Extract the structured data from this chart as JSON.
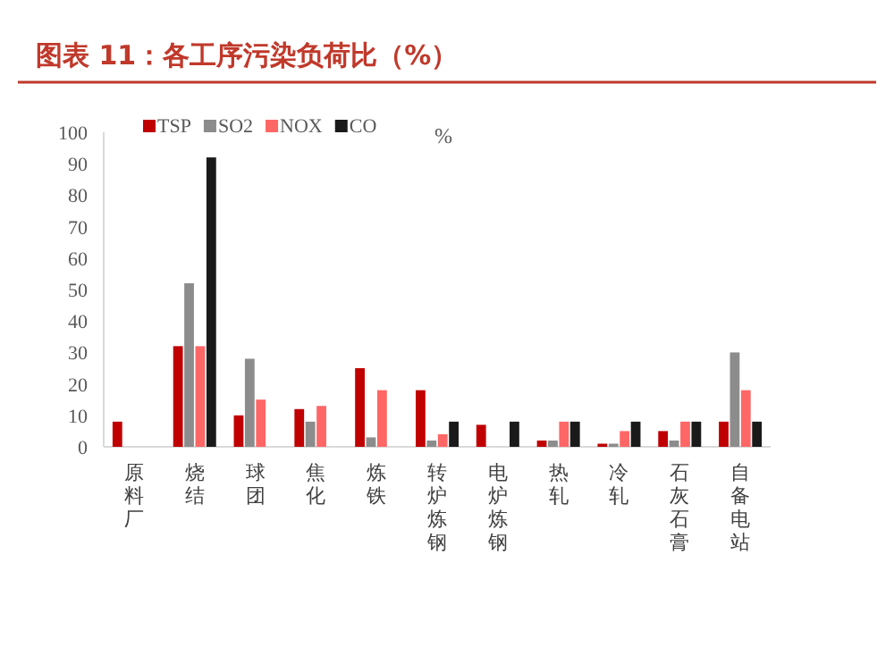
{
  "chart_data": {
    "type": "bar",
    "title": "图表 11：各工序污染负荷比（%）",
    "ylabel": "%",
    "categories": [
      "原料厂",
      "烧结",
      "球团",
      "焦化",
      "炼铁",
      "转炉炼钢",
      "电炉炼钢",
      "热轧",
      "冷轧",
      "石灰石膏",
      "自备电站"
    ],
    "series": [
      {
        "name": "TSP",
        "color": "#c00000",
        "values": [
          8,
          32,
          10,
          12,
          25,
          18,
          7,
          2,
          1,
          5,
          8
        ]
      },
      {
        "name": "SO2",
        "color": "#8c8c8c",
        "values": [
          0,
          52,
          28,
          8,
          3,
          2,
          0,
          2,
          1,
          2,
          30
        ]
      },
      {
        "name": "NOX",
        "color": "#ff6666",
        "values": [
          0,
          32,
          15,
          13,
          18,
          4,
          0,
          8,
          5,
          8,
          18
        ]
      },
      {
        "name": "CO",
        "color": "#1a1a1a",
        "values": [
          0,
          92,
          0,
          0,
          0,
          8,
          8,
          8,
          8,
          8,
          8
        ]
      }
    ],
    "ylim": [
      0,
      100
    ],
    "yticks": [
      0,
      10,
      20,
      30,
      40,
      50,
      60,
      70,
      80,
      90,
      100
    ],
    "legend": "top"
  }
}
